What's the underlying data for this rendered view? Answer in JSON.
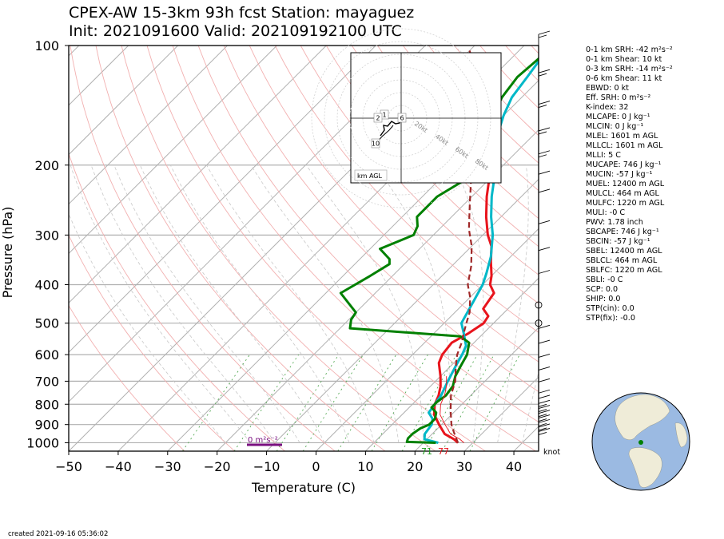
{
  "title_line1": "CPEX-AW 15-3km  93h fcst  Station: mayaguez",
  "title_line2": "Init: 2021091600  Valid: 202109192100 UTC",
  "created": "created 2021-09-16 05:36:02",
  "chart_data": {
    "type": "line",
    "xlabel": "Temperature (C)",
    "ylabel": "Pressure (hPa)",
    "xlim": [
      -50,
      45
    ],
    "ylim": [
      1050,
      100
    ],
    "y_scale": "log",
    "x_ticks": [
      -50,
      -40,
      -30,
      -20,
      -10,
      0,
      10,
      20,
      30,
      40
    ],
    "y_ticks": [
      1000,
      900,
      800,
      700,
      600,
      500,
      400,
      300,
      200,
      100
    ],
    "series": [
      {
        "color": "#e8141c",
        "points": [
          [
            27,
            1000
          ],
          [
            25.5,
            980
          ],
          [
            22.5,
            950
          ],
          [
            19.5,
            900
          ],
          [
            16.5,
            850
          ],
          [
            14.5,
            800
          ],
          [
            13.5,
            760
          ],
          [
            12,
            720
          ],
          [
            10,
            680
          ],
          [
            7,
            630
          ],
          [
            6,
            600
          ],
          [
            5.5,
            560
          ],
          [
            7,
            530
          ],
          [
            8,
            500
          ],
          [
            7.5,
            480
          ],
          [
            5,
            460
          ],
          [
            4,
            420
          ],
          [
            1.5,
            400
          ],
          [
            0,
            380
          ],
          [
            -3,
            350
          ],
          [
            -6,
            320
          ],
          [
            -9,
            300
          ],
          [
            -13,
            270
          ],
          [
            -17,
            240
          ],
          [
            -21,
            210
          ],
          [
            -24,
            190
          ],
          [
            -27,
            175
          ]
        ]
      },
      {
        "color": "#00b8c8",
        "points": [
          [
            23,
            1000
          ],
          [
            19.5,
            980
          ],
          [
            18.5,
            950
          ],
          [
            18,
            900
          ],
          [
            17,
            870
          ],
          [
            15,
            840
          ],
          [
            14.5,
            800
          ],
          [
            14,
            760
          ],
          [
            12.5,
            700
          ],
          [
            11,
            640
          ],
          [
            10,
            600
          ],
          [
            9,
            570
          ],
          [
            6,
            530
          ],
          [
            3.5,
            500
          ],
          [
            1.5,
            440
          ],
          [
            0,
            400
          ],
          [
            -1.5,
            375
          ],
          [
            -4,
            340
          ],
          [
            -8,
            300
          ],
          [
            -12,
            270
          ],
          [
            -16,
            240
          ],
          [
            -20,
            210
          ],
          [
            -23.5,
            190
          ],
          [
            -27,
            170
          ],
          [
            -30,
            150
          ],
          [
            -32,
            135
          ],
          [
            -33,
            120
          ],
          [
            -34,
            108
          ],
          [
            -29,
            100
          ]
        ]
      },
      {
        "color": "#008000",
        "points": [
          [
            22.5,
            1000
          ],
          [
            16.5,
            995
          ],
          [
            16,
            975
          ],
          [
            16,
            950
          ],
          [
            16.5,
            920
          ],
          [
            17.5,
            900
          ],
          [
            17.5,
            870
          ],
          [
            16.5,
            840
          ],
          [
            14.5,
            815
          ],
          [
            14.5,
            790
          ],
          [
            15,
            760
          ],
          [
            14.5,
            720
          ],
          [
            13,
            680
          ],
          [
            12,
            640
          ],
          [
            11,
            600
          ],
          [
            9,
            560
          ],
          [
            6,
            540
          ],
          [
            -18,
            515
          ],
          [
            -19.5,
            490
          ],
          [
            -20,
            470
          ],
          [
            -27,
            420
          ],
          [
            -24.5,
            380
          ],
          [
            -23,
            355
          ],
          [
            -24,
            345
          ],
          [
            -28,
            325
          ],
          [
            -24,
            300
          ],
          [
            -25,
            285
          ],
          [
            -27,
            270
          ],
          [
            -27,
            240
          ],
          [
            -25,
            220
          ],
          [
            -25,
            200
          ],
          [
            -29,
            175
          ],
          [
            -31,
            160
          ],
          [
            -34,
            135
          ],
          [
            -35,
            120
          ],
          [
            -34.5,
            110
          ],
          [
            -34,
            100
          ]
        ]
      },
      {
        "color": "#a02828",
        "dashed": true,
        "points": [
          [
            27,
            1000
          ],
          [
            24,
            940
          ],
          [
            22,
            900
          ],
          [
            19,
            830
          ],
          [
            16,
            760
          ],
          [
            14,
            700
          ],
          [
            12,
            660
          ],
          [
            10.5,
            630
          ],
          [
            9,
            600
          ],
          [
            7.5,
            560
          ],
          [
            6,
            530
          ],
          [
            4.5,
            500
          ],
          [
            3,
            470
          ],
          [
            0,
            430
          ],
          [
            -3,
            400
          ],
          [
            -6,
            360
          ],
          [
            -10,
            320
          ],
          [
            -14,
            290
          ],
          [
            -19,
            250
          ],
          [
            -24,
            215
          ],
          [
            -28,
            190
          ],
          [
            -33,
            165
          ],
          [
            -38,
            145
          ],
          [
            -43,
            125
          ],
          [
            -47,
            110
          ],
          [
            -50,
            103
          ]
        ]
      }
    ],
    "annotations": {
      "surface_td": "71",
      "surface_t": "77",
      "srh_bar": "0 m²s⁻²",
      "wind_unit": "knot"
    },
    "hodograph": {
      "ring_labels": [
        "20kt",
        "40kt",
        "60kt",
        "80kt"
      ],
      "height_labels": [
        "1",
        "2",
        "6",
        "10"
      ],
      "legend": "km AGL"
    }
  },
  "stats": [
    {
      "label": "0-1 km SRH: -42 m²s⁻²"
    },
    {
      "label": "0-1 km Shear: 10 kt"
    },
    {
      "label": "0-3 km SRH: -14 m²s⁻²"
    },
    {
      "label": "0-6 km Shear: 11 kt"
    },
    {
      "label": "EBWD: 0 kt"
    },
    {
      "label": "Eff. SRH: 0 m²s⁻²"
    },
    {
      "label": "K-index: 32"
    },
    {
      "label": "MLCAPE: 0 J kg⁻¹"
    },
    {
      "label": "MLCIN: 0 J kg⁻¹"
    },
    {
      "label": "MLEL: 1601 m AGL"
    },
    {
      "label": "MLLCL: 1601 m AGL"
    },
    {
      "label": "MLLI: 5 C"
    },
    {
      "label": "MUCAPE: 746 J kg⁻¹"
    },
    {
      "label": "MUCIN: -57 J kg⁻¹"
    },
    {
      "label": "MUEL: 12400 m AGL"
    },
    {
      "label": "MULCL: 464 m AGL"
    },
    {
      "label": "MULFC: 1220 m AGL"
    },
    {
      "label": "MULI: -0 C"
    },
    {
      "label": "PWV: 1.78 inch"
    },
    {
      "label": "SBCAPE: 746 J kg⁻¹"
    },
    {
      "label": "SBCIN: -57 J kg⁻¹"
    },
    {
      "label": "SBEL: 12400 m AGL"
    },
    {
      "label": "SBLCL: 464 m AGL"
    },
    {
      "label": "SBLFC: 1220 m AGL"
    },
    {
      "label": "SBLI: -0 C"
    },
    {
      "label": "SCP: 0.0"
    },
    {
      "label": "SHIP: 0.0"
    },
    {
      "label": "STP(cin): 0.0"
    },
    {
      "label": "STP(fix): -0.0"
    }
  ]
}
